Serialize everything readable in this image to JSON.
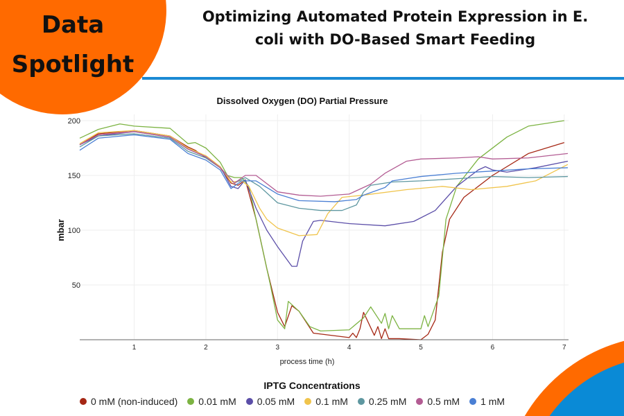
{
  "badge": {
    "line1": "Data",
    "line2": "Spotlight",
    "color": "#ff6a00"
  },
  "header": {
    "title_line1": "Optimizing Automated Protein Expression in E.",
    "title_line2": "coli with DO-Based Smart Feeding",
    "accent": "#1a8ad4"
  },
  "chart_data": {
    "type": "line",
    "title": "Dissolved Oxygen (DO) Partial Pressure",
    "xlabel": "process time (h)",
    "ylabel": "mbar",
    "xlim": [
      0.24,
      7.06
    ],
    "ylim": [
      0,
      200
    ],
    "xticks": [
      1,
      2,
      3,
      4,
      5,
      6,
      7
    ],
    "yticks": [
      50,
      100,
      150,
      200
    ],
    "grid": true,
    "legend_title": "IPTG Concentrations",
    "legend_position": "bottom",
    "series": [
      {
        "name": "0 mM (non-induced)",
        "color": "#a52714",
        "points": [
          [
            0.24,
            178
          ],
          [
            0.5,
            188
          ],
          [
            1,
            191
          ],
          [
            1.5,
            186
          ],
          [
            1.75,
            176
          ],
          [
            1.85,
            173
          ],
          [
            2,
            166
          ],
          [
            2.2,
            157
          ],
          [
            2.35,
            143
          ],
          [
            2.45,
            141
          ],
          [
            2.55,
            146
          ],
          [
            2.7,
            110
          ],
          [
            2.85,
            65
          ],
          [
            3.0,
            25
          ],
          [
            3.1,
            12
          ],
          [
            3.2,
            31
          ],
          [
            3.3,
            26
          ],
          [
            3.5,
            6
          ],
          [
            4.0,
            2
          ],
          [
            4.05,
            6
          ],
          [
            4.1,
            2
          ],
          [
            4.15,
            10
          ],
          [
            4.2,
            25
          ],
          [
            4.35,
            4
          ],
          [
            4.4,
            12
          ],
          [
            4.45,
            1
          ],
          [
            4.5,
            10
          ],
          [
            4.55,
            1
          ],
          [
            4.7,
            1
          ],
          [
            5.0,
            0
          ],
          [
            5.1,
            5
          ],
          [
            5.2,
            18
          ],
          [
            5.3,
            80
          ],
          [
            5.4,
            110
          ],
          [
            5.6,
            130
          ],
          [
            6.0,
            150
          ],
          [
            6.5,
            170
          ],
          [
            7.0,
            180
          ]
        ]
      },
      {
        "name": "0.01 mM",
        "color": "#7cb342",
        "points": [
          [
            0.24,
            184
          ],
          [
            0.5,
            192
          ],
          [
            0.8,
            197
          ],
          [
            1,
            195
          ],
          [
            1.5,
            193
          ],
          [
            1.75,
            179
          ],
          [
            1.85,
            180
          ],
          [
            2,
            175
          ],
          [
            2.2,
            162
          ],
          [
            2.3,
            150
          ],
          [
            2.4,
            148
          ],
          [
            2.5,
            148
          ],
          [
            2.6,
            140
          ],
          [
            2.75,
            95
          ],
          [
            2.9,
            50
          ],
          [
            3.0,
            18
          ],
          [
            3.1,
            10
          ],
          [
            3.15,
            35
          ],
          [
            3.3,
            26
          ],
          [
            3.45,
            12
          ],
          [
            3.6,
            8
          ],
          [
            4,
            9
          ],
          [
            4.2,
            20
          ],
          [
            4.3,
            30
          ],
          [
            4.45,
            15
          ],
          [
            4.5,
            24
          ],
          [
            4.55,
            10
          ],
          [
            4.6,
            22
          ],
          [
            4.7,
            10
          ],
          [
            5,
            10
          ],
          [
            5.05,
            22
          ],
          [
            5.1,
            12
          ],
          [
            5.25,
            40
          ],
          [
            5.35,
            110
          ],
          [
            5.5,
            140
          ],
          [
            5.8,
            165
          ],
          [
            6.2,
            185
          ],
          [
            6.5,
            195
          ],
          [
            7.0,
            200
          ]
        ]
      },
      {
        "name": "0.05 mM",
        "color": "#5b4ea8",
        "points": [
          [
            0.24,
            178
          ],
          [
            0.5,
            186
          ],
          [
            1,
            190
          ],
          [
            1.5,
            185
          ],
          [
            1.75,
            174
          ],
          [
            2,
            167
          ],
          [
            2.2,
            158
          ],
          [
            2.35,
            140
          ],
          [
            2.45,
            138
          ],
          [
            2.55,
            146
          ],
          [
            2.7,
            120
          ],
          [
            2.85,
            100
          ],
          [
            3.0,
            85
          ],
          [
            3.2,
            67
          ],
          [
            3.27,
            67
          ],
          [
            3.35,
            90
          ],
          [
            3.5,
            108
          ],
          [
            3.6,
            109
          ],
          [
            4,
            106
          ],
          [
            4.5,
            104
          ],
          [
            4.9,
            108
          ],
          [
            5.2,
            118
          ],
          [
            5.5,
            140
          ],
          [
            5.8,
            155
          ],
          [
            5.9,
            158
          ],
          [
            6.0,
            155
          ],
          [
            6.2,
            153
          ],
          [
            6.6,
            157
          ],
          [
            7.05,
            163
          ]
        ]
      },
      {
        "name": "0.1 mM",
        "color": "#f0c44c",
        "points": [
          [
            0.24,
            179
          ],
          [
            0.5,
            189
          ],
          [
            1,
            191
          ],
          [
            1.5,
            186
          ],
          [
            1.75,
            175
          ],
          [
            2,
            168
          ],
          [
            2.2,
            158
          ],
          [
            2.35,
            144
          ],
          [
            2.5,
            145
          ],
          [
            2.6,
            140
          ],
          [
            2.75,
            120
          ],
          [
            2.85,
            110
          ],
          [
            3.0,
            102
          ],
          [
            3.3,
            95
          ],
          [
            3.55,
            96
          ],
          [
            3.7,
            115
          ],
          [
            3.9,
            130
          ],
          [
            4.2,
            132
          ],
          [
            4.8,
            137
          ],
          [
            5.3,
            140
          ],
          [
            5.7,
            137
          ],
          [
            6.2,
            140
          ],
          [
            6.6,
            145
          ],
          [
            7.05,
            160
          ]
        ]
      },
      {
        "name": "0.25 mM",
        "color": "#5e97a0",
        "points": [
          [
            0.24,
            176
          ],
          [
            0.5,
            186
          ],
          [
            1,
            188
          ],
          [
            1.5,
            184
          ],
          [
            1.75,
            172
          ],
          [
            2,
            166
          ],
          [
            2.2,
            157
          ],
          [
            2.4,
            143
          ],
          [
            2.55,
            148
          ],
          [
            2.75,
            140
          ],
          [
            3.0,
            125
          ],
          [
            3.3,
            120
          ],
          [
            3.6,
            118
          ],
          [
            3.9,
            118
          ],
          [
            4.1,
            123
          ],
          [
            4.2,
            135
          ],
          [
            4.3,
            141
          ],
          [
            4.6,
            144
          ],
          [
            5.0,
            145
          ],
          [
            5.5,
            147
          ],
          [
            6.0,
            149
          ],
          [
            6.5,
            148
          ],
          [
            7.05,
            149
          ]
        ]
      },
      {
        "name": "0.5 mM",
        "color": "#b35c93",
        "points": [
          [
            0.24,
            178
          ],
          [
            0.5,
            187
          ],
          [
            1,
            190
          ],
          [
            1.5,
            185
          ],
          [
            1.75,
            174
          ],
          [
            2,
            167
          ],
          [
            2.2,
            157
          ],
          [
            2.4,
            143
          ],
          [
            2.55,
            150
          ],
          [
            2.7,
            150
          ],
          [
            3.0,
            135
          ],
          [
            3.3,
            132
          ],
          [
            3.6,
            131
          ],
          [
            4.0,
            133
          ],
          [
            4.3,
            142
          ],
          [
            4.5,
            152
          ],
          [
            4.8,
            163
          ],
          [
            5,
            165
          ],
          [
            5.5,
            166
          ],
          [
            5.8,
            167
          ],
          [
            6.0,
            165
          ],
          [
            6.5,
            166
          ],
          [
            7.05,
            170
          ]
        ]
      },
      {
        "name": "1 mM",
        "color": "#4a7fd4",
        "points": [
          [
            0.24,
            173
          ],
          [
            0.5,
            184
          ],
          [
            1,
            187
          ],
          [
            1.5,
            183
          ],
          [
            1.75,
            170
          ],
          [
            2,
            164
          ],
          [
            2.2,
            155
          ],
          [
            2.35,
            138
          ],
          [
            2.5,
            145
          ],
          [
            2.7,
            145
          ],
          [
            3.0,
            133
          ],
          [
            3.3,
            127
          ],
          [
            3.8,
            126
          ],
          [
            4.1,
            128
          ],
          [
            4.2,
            132
          ],
          [
            4.5,
            139
          ],
          [
            4.6,
            145
          ],
          [
            5,
            149
          ],
          [
            5.5,
            152
          ],
          [
            6,
            154
          ],
          [
            6.5,
            156
          ],
          [
            7.05,
            157
          ]
        ]
      }
    ]
  }
}
